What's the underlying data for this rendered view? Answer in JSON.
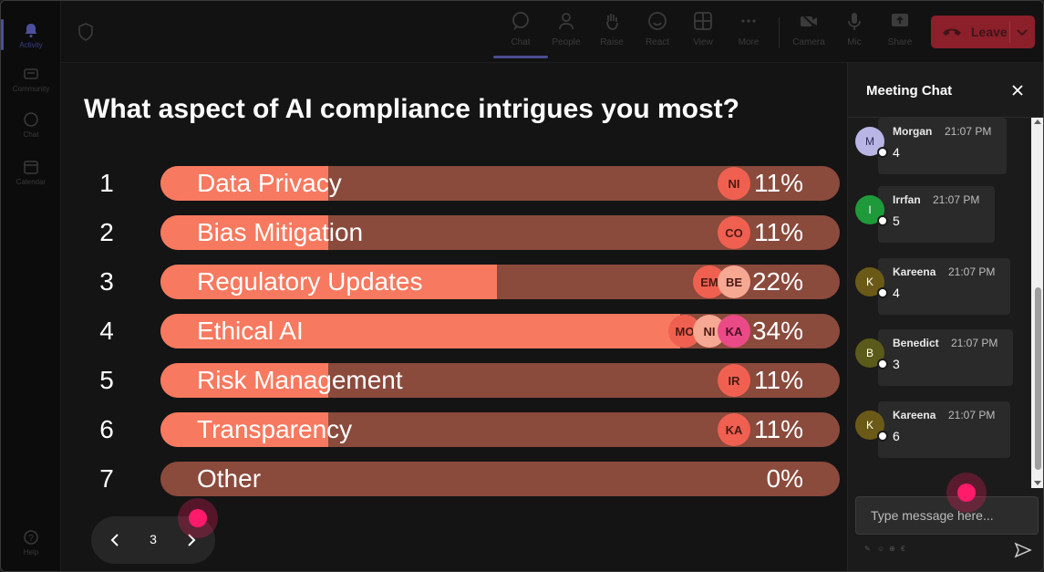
{
  "rail": {
    "items": [
      {
        "label": "Activity",
        "icon": "bell-icon"
      },
      {
        "label": "Community",
        "icon": "community-icon"
      },
      {
        "label": "Chat",
        "icon": "chat-icon"
      },
      {
        "label": "Calendar",
        "icon": "calendar-icon"
      }
    ],
    "help": {
      "label": "Help",
      "icon": "help-icon"
    }
  },
  "toolbar": {
    "buttons": [
      {
        "label": "Chat",
        "icon": "chat-bubble-icon"
      },
      {
        "label": "People",
        "icon": "people-icon"
      },
      {
        "label": "Raise",
        "icon": "raise-hand-icon"
      },
      {
        "label": "React",
        "icon": "react-emoji-icon"
      },
      {
        "label": "View",
        "icon": "view-grid-icon"
      },
      {
        "label": "More",
        "icon": "more-icon"
      },
      {
        "label": "Camera",
        "icon": "camera-icon"
      },
      {
        "label": "Mic",
        "icon": "mic-icon"
      },
      {
        "label": "Share",
        "icon": "share-icon"
      }
    ],
    "leave_label": "Leave"
  },
  "poll": {
    "question": "What aspect of AI compliance intrigues you most?",
    "options": [
      {
        "num": "1",
        "label": "Data Privacy",
        "pct": "11%",
        "fraction": 0.11,
        "avatars": [
          "NI"
        ]
      },
      {
        "num": "2",
        "label": "Bias Mitigation",
        "pct": "11%",
        "fraction": 0.11,
        "avatars": [
          "CO"
        ]
      },
      {
        "num": "3",
        "label": "Regulatory Updates",
        "pct": "22%",
        "fraction": 0.22,
        "avatars": [
          "EM",
          "BE"
        ]
      },
      {
        "num": "4",
        "label": "Ethical AI",
        "pct": "34%",
        "fraction": 0.34,
        "avatars": [
          "MO",
          "NI",
          "KA"
        ]
      },
      {
        "num": "5",
        "label": "Risk Management",
        "pct": "11%",
        "fraction": 0.11,
        "avatars": [
          "IR"
        ]
      },
      {
        "num": "6",
        "label": "Transparency",
        "pct": "11%",
        "fraction": 0.11,
        "avatars": [
          "KA"
        ]
      },
      {
        "num": "7",
        "label": "Other",
        "pct": "0%",
        "fraction": 0,
        "avatars": []
      }
    ],
    "page": "3"
  },
  "chat": {
    "title": "Meeting Chat",
    "messages": [
      {
        "initial": "M",
        "name": "Morgan",
        "time": "21:07 PM",
        "text": "4",
        "color": "#b9b6e6"
      },
      {
        "initial": "I",
        "name": "Irrfan",
        "time": "21:07 PM",
        "text": "5",
        "color": "#1f9a3a"
      },
      {
        "initial": "K",
        "name": "Kareena",
        "time": "21:07 PM",
        "text": "4",
        "color": "#6b5a17"
      },
      {
        "initial": "B",
        "name": "Benedict",
        "time": "21:07 PM",
        "text": "3",
        "color": "#5a5a1a"
      },
      {
        "initial": "K",
        "name": "Kareena",
        "time": "21:07 PM",
        "text": "6",
        "color": "#6b5a17"
      }
    ],
    "input_placeholder": "Type message here..."
  },
  "colors": {
    "bar_fill": "#f7795f",
    "bar_track": "#8a4a3c",
    "leave": "#8b1f2a",
    "cursor": "#ff1a6a"
  }
}
